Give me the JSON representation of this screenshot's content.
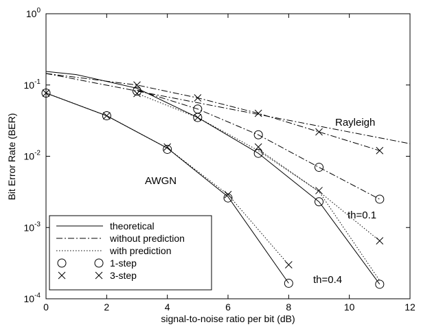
{
  "chart_data": {
    "type": "line",
    "title": "",
    "xlabel": "signal-to-noise ratio per bit (dB)",
    "ylabel": "Bit Error Rate (BER)",
    "xlim": [
      0,
      12
    ],
    "ylim": [
      0.0001,
      1
    ],
    "yscale": "log",
    "grid": false,
    "legend_position": "bottom-left",
    "xticks": [
      "0",
      "2",
      "4",
      "6",
      "8",
      "10",
      "12"
    ],
    "yticks": [
      {
        "base": "10",
        "exp": "-4",
        "value": 0.0001
      },
      {
        "base": "10",
        "exp": "-3",
        "value": 0.001
      },
      {
        "base": "10",
        "exp": "-2",
        "value": 0.01
      },
      {
        "base": "10",
        "exp": "-1",
        "value": 0.1
      },
      {
        "base": "10",
        "exp": "0",
        "value": 1
      }
    ],
    "legend": [
      {
        "label": "theoretical",
        "style": "solid"
      },
      {
        "label": "without prediction",
        "style": "dashdot"
      },
      {
        "label": "with prediction",
        "style": "dotted"
      },
      {
        "label": "1-step",
        "style": "circle"
      },
      {
        "label": "3-step",
        "style": "cross"
      }
    ],
    "annotations": [
      {
        "text": "Rayleigh",
        "x": 9.5,
        "y": 0.032
      },
      {
        "text": "AWGN",
        "x": 4.0,
        "y": 0.0052
      },
      {
        "text": "th=0.1",
        "x": 9.8,
        "y": 0.00108
      },
      {
        "text": "th=0.4",
        "x": 8.5,
        "y": 0.00018
      }
    ],
    "series": [
      {
        "style": "solid",
        "x": [
          0,
          2,
          4,
          6,
          8
        ],
        "y": [
          0.077,
          0.037,
          0.013,
          0.0027,
          0.000165
        ]
      },
      {
        "style": "dotted",
        "x": [
          0,
          2,
          4,
          6,
          8
        ],
        "y": [
          0.077,
          0.037,
          0.013,
          0.0029,
          0.0003
        ]
      },
      {
        "style": "solid",
        "x": [
          0,
          1,
          3,
          5,
          7,
          9,
          11
        ],
        "y": [
          0.155,
          0.14,
          0.09,
          0.035,
          0.011,
          0.0023,
          0.00016
        ]
      },
      {
        "style": "dotted",
        "x": [
          3,
          5,
          7,
          9,
          11
        ],
        "y": [
          0.076,
          0.035,
          0.012,
          0.0032,
          0.00018
        ]
      },
      {
        "style": "dashdot",
        "x": [
          0,
          3,
          5,
          7,
          9,
          11
        ],
        "y": [
          0.145,
          0.1,
          0.066,
          0.04,
          0.022,
          0.012
        ]
      },
      {
        "style": "dashdot",
        "x": [
          3,
          5,
          7,
          9,
          11
        ],
        "y": [
          0.085,
          0.046,
          0.02,
          0.007,
          0.0025
        ]
      },
      {
        "style": "dashdot",
        "x": [
          0,
          12
        ],
        "y": [
          0.145,
          0.015
        ]
      },
      {
        "style": "dotted",
        "x": [
          7,
          9,
          11
        ],
        "y": [
          0.0125,
          0.0032,
          0.00065
        ]
      }
    ],
    "markers": {
      "circle": [
        [
          0,
          0.077
        ],
        [
          2,
          0.037
        ],
        [
          4,
          0.0125
        ],
        [
          6,
          0.0026
        ],
        [
          8,
          0.000165
        ],
        [
          3,
          0.082
        ],
        [
          5,
          0.046
        ],
        [
          7,
          0.02
        ],
        [
          9,
          0.007
        ],
        [
          11,
          0.0025
        ],
        [
          5,
          0.035
        ],
        [
          7,
          0.011
        ],
        [
          9,
          0.0023
        ],
        [
          11,
          0.00016
        ]
      ],
      "cross": [
        [
          0,
          0.077
        ],
        [
          2,
          0.037
        ],
        [
          4,
          0.0135
        ],
        [
          6,
          0.0029
        ],
        [
          8,
          0.0003
        ],
        [
          3,
          0.1
        ],
        [
          5,
          0.066
        ],
        [
          7,
          0.04
        ],
        [
          9,
          0.022
        ],
        [
          11,
          0.012
        ],
        [
          3,
          0.076
        ],
        [
          5,
          0.035
        ],
        [
          7,
          0.0135
        ],
        [
          9,
          0.0033
        ],
        [
          11,
          0.00065
        ]
      ]
    }
  }
}
